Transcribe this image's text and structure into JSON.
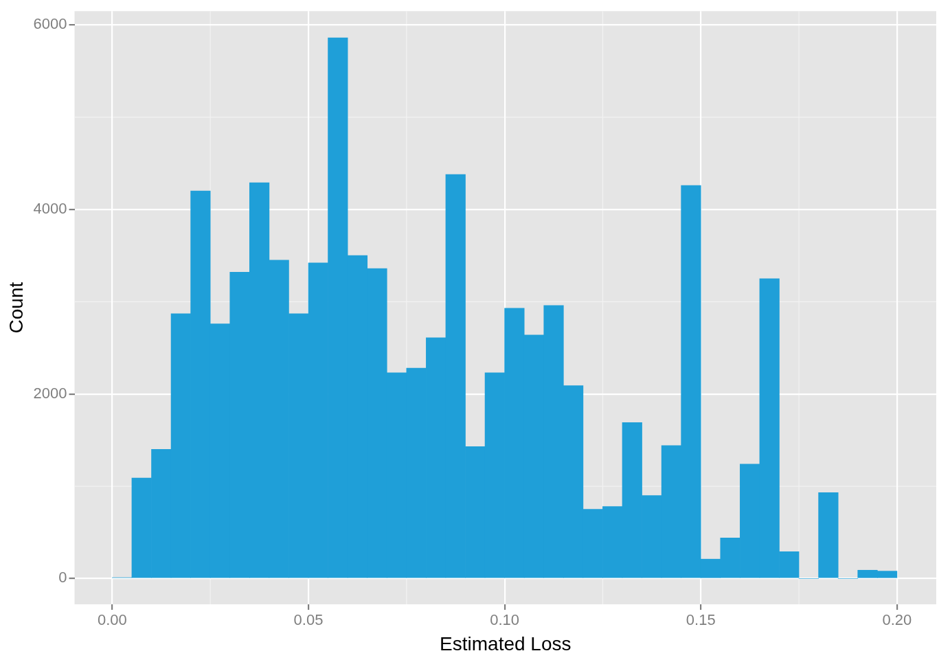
{
  "chart_data": {
    "type": "histogram",
    "xlabel": "Estimated Loss",
    "ylabel": "Count",
    "bins": [
      0,
      0.005,
      0.01,
      0.015,
      0.02,
      0.025,
      0.03,
      0.035,
      0.04,
      0.045,
      0.05,
      0.055,
      0.06,
      0.065,
      0.07,
      0.075,
      0.08,
      0.085,
      0.09,
      0.095,
      0.1,
      0.105,
      0.11,
      0.115,
      0.12,
      0.125,
      0.13,
      0.135,
      0.14,
      0.145,
      0.15,
      0.155,
      0.16,
      0.165,
      0.17,
      0.175,
      0.18,
      0.185,
      0.19,
      0.195,
      0.2
    ],
    "values": [
      10,
      1090,
      1400,
      2870,
      4200,
      2760,
      3320,
      4290,
      3450,
      2870,
      3420,
      5860,
      3500,
      3360,
      2230,
      2280,
      2610,
      4380,
      1430,
      2230,
      2930,
      2640,
      2960,
      2090,
      750,
      780,
      1690,
      900,
      1440,
      4260,
      210,
      440,
      1240,
      3250,
      290,
      0,
      930,
      0,
      90,
      80
    ],
    "color": "#1f9fd8",
    "xlim": [
      -0.0096,
      0.21
    ],
    "xticks": [
      {
        "value": 0,
        "label": "0.00"
      },
      0.05,
      {
        "value": 0.1,
        "label": "0.10"
      },
      0.15,
      {
        "value": 0.2,
        "label": "0.20"
      }
    ],
    "ylim": [
      -280,
      6150
    ],
    "yticks": [
      0,
      2000,
      4000,
      6000
    ],
    "grid": true,
    "legend": false
  }
}
